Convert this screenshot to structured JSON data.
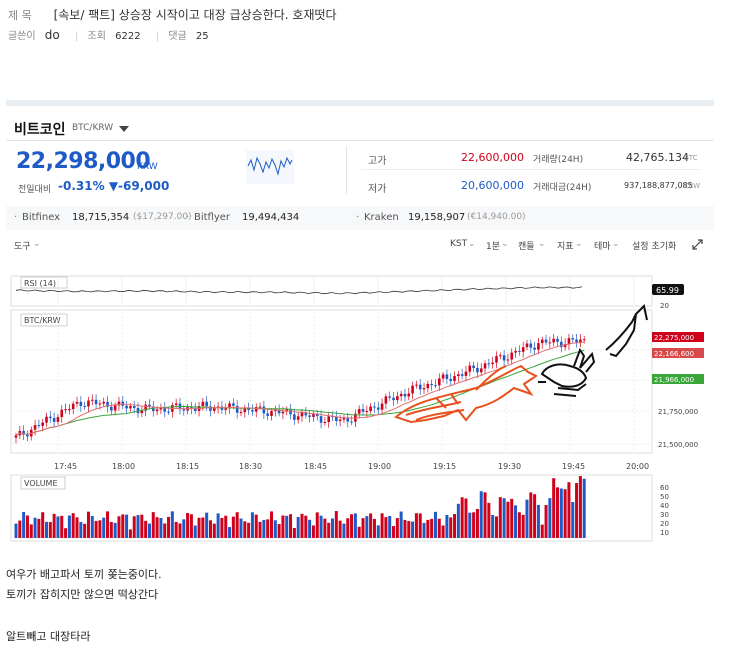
{
  "post": {
    "title_label": "제 목",
    "title": "[속보/ 팩트] 상승장 시작이고 대장 급상승한다. 호재떳다",
    "author_label": "글쓴이",
    "author": "do",
    "views_label": "조회",
    "views": "6222",
    "comments_label": "댓글",
    "comments": "25"
  },
  "widget": {
    "coin_name": "비트코인",
    "pair": "BTC/KRW",
    "price": "22,298,000",
    "price_unit": "KRW",
    "change_label": "전일대비",
    "change_pct": "-0.31%",
    "change_abs": "▼-69,000",
    "high_label": "고가",
    "high": "22,600,000",
    "low_label": "저가",
    "low": "20,600,000",
    "volume_label": "거래량(24H)",
    "volume": "42,765.134",
    "volume_unit": "BTC",
    "amount_label": "거래대금(24H)",
    "amount": "937,188,877,085",
    "amount_unit": "KRW"
  },
  "exchanges": [
    {
      "name": "Bitfinex",
      "price": "18,715,354",
      "alt": "($17,297.00)"
    },
    {
      "name": "Bitflyer",
      "price": "19,494,434",
      "alt": ""
    },
    {
      "name": "Kraken",
      "price": "19,158,907",
      "alt": "(€14,940.00)"
    }
  ],
  "toolbar": {
    "tools": "도구",
    "timezone": "KST",
    "interval": "1분",
    "candle": "캔들",
    "indicator": "지표",
    "theme": "테마",
    "reset": "설정 초기화"
  },
  "chart_labels": {
    "rsi": "RSI (14)",
    "main": "BTC/KRW",
    "volume": "VOLUME"
  },
  "colors": {
    "up": "#d0021b",
    "down": "#1e5bc6",
    "ma_green": "#3aa63a",
    "ma_red": "#e07070",
    "annotation": "#e8501e"
  },
  "chart_data": [
    {
      "type": "line",
      "title": "RSI (14)",
      "y_ticks": [
        "20"
      ],
      "current_label": "65.99",
      "x": [
        "17:45",
        "18:00",
        "18:15",
        "18:30",
        "18:45",
        "19:00",
        "19:15",
        "19:30",
        "19:45",
        "20:00"
      ],
      "values": [
        56,
        52,
        54,
        50,
        49,
        45,
        52,
        60,
        66,
        66
      ]
    },
    {
      "type": "line",
      "title": "BTC/KRW",
      "x": [
        "17:45",
        "18:00",
        "18:15",
        "18:30",
        "18:45",
        "19:00",
        "19:15",
        "19:30",
        "19:45",
        "20:00"
      ],
      "y_ticks": [
        "21,500,000",
        "21,750,000"
      ],
      "price_labels": [
        "22,275,000",
        "22,166,600",
        "21,966,000"
      ],
      "series": [
        {
          "values": [
            21520000,
            21800000,
            21740000,
            21760000,
            21720000,
            21650000,
            21880000,
            22050000,
            22260000,
            22280000
          ]
        }
      ],
      "ylim": [
        21400000,
        22500000
      ]
    },
    {
      "type": "bar",
      "title": "VOLUME",
      "y_ticks": [
        "10",
        "20",
        "30",
        "40",
        "50",
        "60"
      ],
      "ylim": [
        0,
        65
      ]
    }
  ],
  "axis_labels": [
    "17:45",
    "18:00",
    "18:15",
    "18:30",
    "18:45",
    "19:00",
    "19:15",
    "19:30",
    "19:45",
    "20:00"
  ],
  "body_lines": [
    "여우가 배고파서 토끼 쫒는중이다.",
    "토끼가 잡히지만 않으면 떡상간다",
    "알트빼고 대장타라"
  ]
}
